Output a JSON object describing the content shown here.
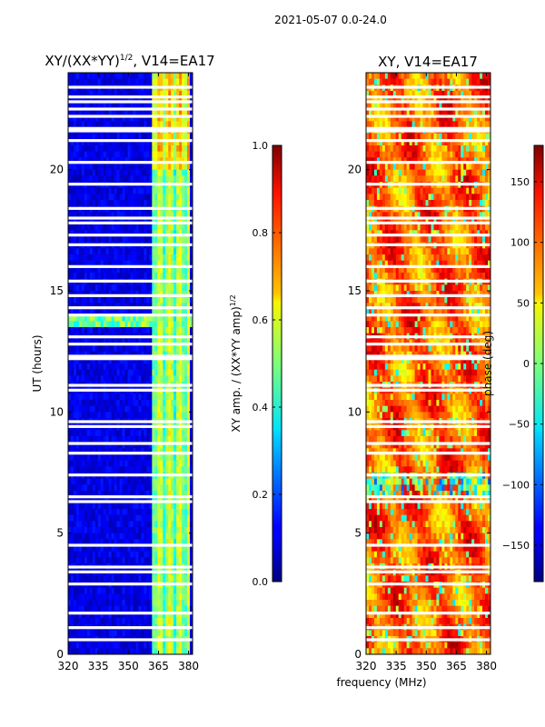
{
  "suptitle": "2021-05-07 0.0-24.0",
  "xlabel_shared": "frequency (MHz)",
  "chart_data": [
    {
      "type": "heatmap",
      "title_prefix": "XY/(XX*YY)",
      "title_sup": "1/2",
      "title_suffix": ", V14=EA17",
      "ylabel": "UT (hours)",
      "xlim": [
        320,
        382
      ],
      "ylim": [
        0,
        24
      ],
      "xticks": [
        320,
        335,
        350,
        365,
        380
      ],
      "yticks": [
        0,
        5,
        10,
        15,
        20
      ],
      "bright_band_mhz": [
        362,
        381
      ],
      "gap_hours": [
        0.6,
        1.1,
        1.7,
        2.9,
        3.4,
        3.6,
        4.5,
        6.3,
        6.5,
        7.4,
        8.3,
        8.7,
        9.4,
        9.6,
        10.9,
        11.1,
        12.2,
        12.3,
        12.8,
        13.1,
        14.0,
        14.3,
        14.8,
        15.4,
        16.0,
        16.9,
        17.3,
        17.8,
        18.0,
        18.4,
        19.4,
        20.3,
        21.2,
        21.6,
        21.7,
        22.2,
        22.5,
        22.8,
        23.0,
        23.4
      ]
    },
    {
      "type": "colorbar",
      "label_main": "XY amp. / (XX*YY amp)",
      "label_sup": "1/2",
      "range": [
        0,
        1
      ],
      "ticks": [
        0.0,
        0.2,
        0.4,
        0.6,
        0.8,
        1.0
      ],
      "tick_labels": [
        "0.0",
        "0.2",
        "0.4",
        "0.6",
        "0.8",
        "1.0"
      ]
    },
    {
      "type": "heatmap",
      "title": "XY, V14=EA17",
      "xlim": [
        320,
        382
      ],
      "ylim": [
        0,
        24
      ],
      "xticks": [
        320,
        335,
        350,
        365,
        380
      ],
      "yticks": [
        0,
        5,
        10,
        15,
        20
      ],
      "gap_hours": [
        0.6,
        1.1,
        1.7,
        2.9,
        3.4,
        3.6,
        4.5,
        6.3,
        6.5,
        7.4,
        8.3,
        8.7,
        9.4,
        9.6,
        10.9,
        11.1,
        12.2,
        12.3,
        12.8,
        13.1,
        14.0,
        14.3,
        14.8,
        15.4,
        16.0,
        16.9,
        17.3,
        17.8,
        18.0,
        18.4,
        19.4,
        20.3,
        21.2,
        21.6,
        21.7,
        22.2,
        22.5,
        22.8,
        23.0,
        23.4
      ]
    },
    {
      "type": "colorbar",
      "label": "phase (deg)",
      "range": [
        -180,
        180
      ],
      "ticks": [
        -150,
        -100,
        -50,
        0,
        50,
        100,
        150
      ],
      "tick_labels": [
        "−150",
        "−100",
        "−50",
        "0",
        "50",
        "100",
        "150"
      ]
    }
  ]
}
